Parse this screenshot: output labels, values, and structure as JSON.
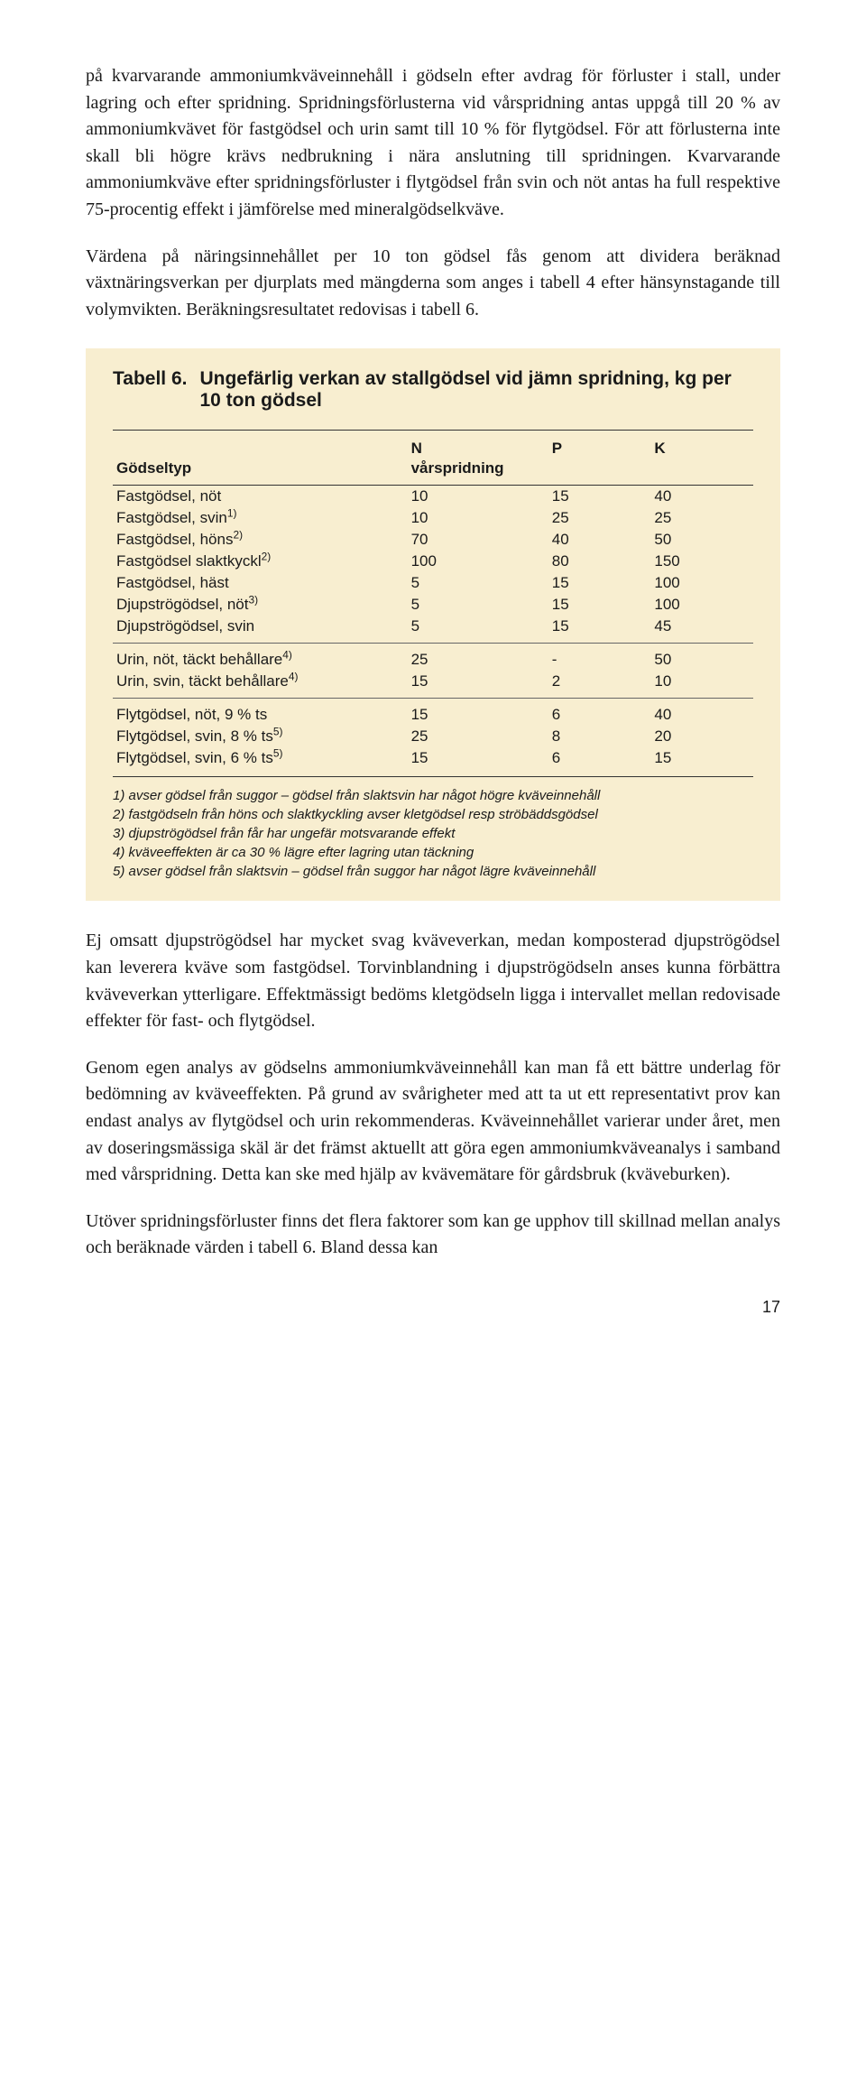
{
  "para1": "på kvarvarande ammoniumkväveinnehåll i gödseln efter avdrag för förluster i stall, under lagring och efter spridning. Spridningsförlusterna vid vårspridning antas uppgå till 20 % av ammoniumkvävet för fastgödsel och urin samt till 10 % för flytgödsel. För att förlusterna inte skall bli högre krävs nedbrukning i nära anslutning till spridningen. Kvarvarande ammoniumkväve efter spridningsförluster i flytgödsel från svin och nöt antas ha full respektive 75-procentig effekt i jämförelse med mineralgödselkväve.",
  "para2": "Värdena på näringsinnehållet per 10 ton gödsel fås genom att dividera beräknad växtnäringsverkan per djurplats med mängderna som anges i tabell 4 efter hänsynstagande till volymvikten. Beräkningsresultatet redovisas i tabell 6.",
  "table": {
    "number": "Tabell 6.",
    "title": "Ungefärlig verkan av stallgödsel vid jämn spridning, kg per 10 ton gödsel",
    "headers": {
      "col0": "Gödseltyp",
      "n": "N",
      "n_sub": "vårspridning",
      "p": "P",
      "k": "K"
    },
    "rows": [
      {
        "name": "Fastgödsel, nöt",
        "sup": "",
        "n": "10",
        "p": "15",
        "k": "40"
      },
      {
        "name": "Fastgödsel, svin",
        "sup": "1)",
        "n": "10",
        "p": "25",
        "k": "25"
      },
      {
        "name": "Fastgödsel, höns",
        "sup": "2)",
        "n": "70",
        "p": "40",
        "k": "50"
      },
      {
        "name": "Fastgödsel slaktkyckl",
        "sup": "2)",
        "n": "100",
        "p": "80",
        "k": "150"
      },
      {
        "name": "Fastgödsel, häst",
        "sup": "",
        "n": "5",
        "p": "15",
        "k": "100"
      },
      {
        "name": "Djupströgödsel, nöt",
        "sup": "3)",
        "n": "5",
        "p": "15",
        "k": "100"
      },
      {
        "name": "Djupströgödsel, svin",
        "sup": "",
        "n": "5",
        "p": "15",
        "k": "45"
      }
    ],
    "rows2": [
      {
        "name": "Urin, nöt, täckt behållare",
        "sup": "4)",
        "n": "25",
        "p": "-",
        "k": "50"
      },
      {
        "name": "Urin, svin, täckt behållare",
        "sup": "4)",
        "n": "15",
        "p": "2",
        "k": "10"
      }
    ],
    "rows3": [
      {
        "name": "Flytgödsel, nöt, 9 % ts",
        "sup": "",
        "n": "15",
        "p": "6",
        "k": "40"
      },
      {
        "name": "Flytgödsel, svin, 8 % ts",
        "sup": "5)",
        "n": "25",
        "p": "8",
        "k": "20"
      },
      {
        "name": "Flytgödsel, svin, 6 % ts",
        "sup": "5)",
        "n": "15",
        "p": "6",
        "k": "15"
      }
    ],
    "footnotes": [
      "1) avser gödsel från suggor – gödsel från slaktsvin har något högre kväveinnehåll",
      "2) fastgödseln från höns och slaktkyckling avser kletgödsel resp ströbäddsgödsel",
      "3) djupströgödsel från får har ungefär motsvarande effekt",
      "4) kväveeffekten är ca 30 % lägre efter lagring utan täckning",
      "5) avser gödsel från slaktsvin – gödsel från suggor har något lägre kväveinnehåll"
    ]
  },
  "para3": "Ej omsatt djupströgödsel har mycket svag kväveverkan, medan komposterad djupströgödsel kan leverera kväve som fastgödsel. Torvinblandning i djupströgödseln anses kunna förbättra kväveverkan ytterligare. Effektmässigt bedöms kletgödseln ligga i intervallet mellan redovisade effekter för fast- och flytgödsel.",
  "para4": "Genom egen analys av gödselns ammoniumkväveinnehåll kan man få ett bättre underlag för bedömning av kväveeffekten. På grund av svårigheter med att ta ut ett representativt prov kan endast analys av flytgödsel och urin rekommenderas. Kväveinnehållet varierar under året, men av doseringsmässiga skäl är det främst aktuellt att göra egen ammoniumkväveanalys i samband med vårspridning. Detta kan ske med hjälp av kvävemätare för gårdsbruk (kväveburken).",
  "para5": "Utöver spridningsförluster finns det flera faktorer som kan ge upphov till skillnad mellan analys och beräknade värden i tabell 6. Bland dessa kan",
  "page_number": "17",
  "colors": {
    "table_bg": "#f8eed0",
    "text": "#1a1a1a",
    "rule": "#333333"
  }
}
